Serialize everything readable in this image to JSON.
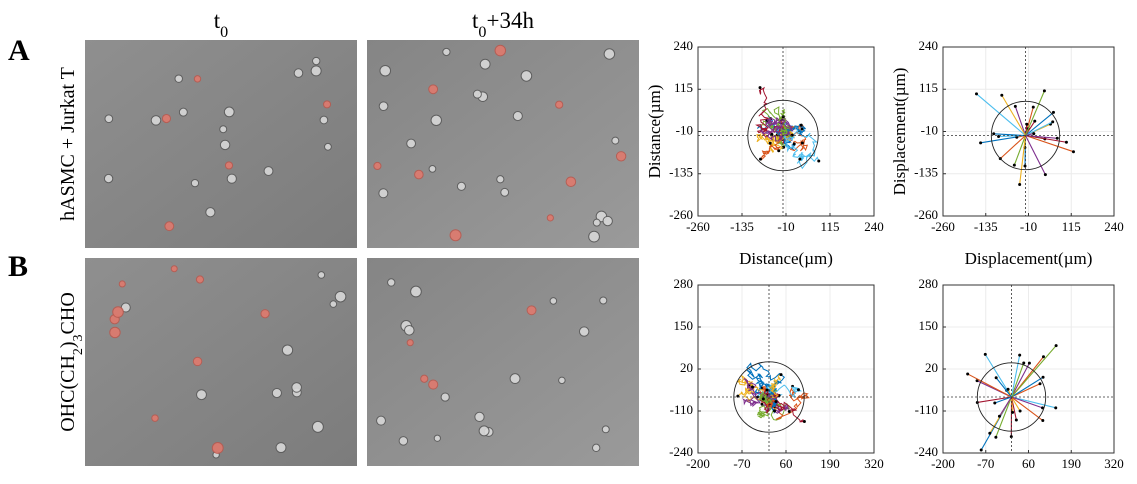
{
  "panel_labels": [
    "A",
    "B"
  ],
  "column_headers": [
    [
      {
        "text": "t"
      },
      {
        "sub": "0"
      }
    ],
    [
      {
        "text": "t"
      },
      {
        "sub": "0"
      },
      {
        "text": "+34h"
      }
    ]
  ],
  "row_labels": [
    [
      {
        "text": "hASMC + Jurkat T"
      }
    ],
    [
      {
        "text": "OHC(CH"
      },
      {
        "sub": "2"
      },
      {
        "text": ")"
      },
      {
        "sub": "3"
      },
      {
        "text": "CHO"
      }
    ]
  ],
  "chart_data": [
    {
      "type": "line",
      "xlabel": "Distance(µm)",
      "ylabel": "Distance(µm)",
      "xlim": [
        -260,
        240
      ],
      "xticks": [
        -260,
        -135,
        -10,
        115,
        240
      ],
      "ylim": [
        -260,
        240
      ],
      "yticks": [
        -260,
        -135,
        -10,
        115,
        240
      ]
    },
    {
      "type": "displacement",
      "xlabel": "Displacement(µm)",
      "ylabel": "Displacement(µm)",
      "xlim": [
        -260,
        240
      ],
      "xticks": [
        -260,
        -135,
        -10,
        115,
        240
      ],
      "ylim": [
        -260,
        240
      ],
      "yticks": [
        -260,
        -135,
        -10,
        115,
        240
      ]
    },
    {
      "type": "line",
      "xlim": [
        -200,
        320
      ],
      "xticks": [
        -200,
        -70,
        60,
        190,
        320
      ],
      "ylim": [
        -240,
        280
      ],
      "yticks": [
        -240,
        -110,
        20,
        150,
        280
      ]
    },
    {
      "type": "displacement",
      "xlim": [
        -200,
        320
      ],
      "xticks": [
        -200,
        -70,
        60,
        190,
        320
      ],
      "ylim": [
        -240,
        280
      ],
      "yticks": [
        -240,
        -110,
        20,
        150,
        280
      ]
    }
  ]
}
